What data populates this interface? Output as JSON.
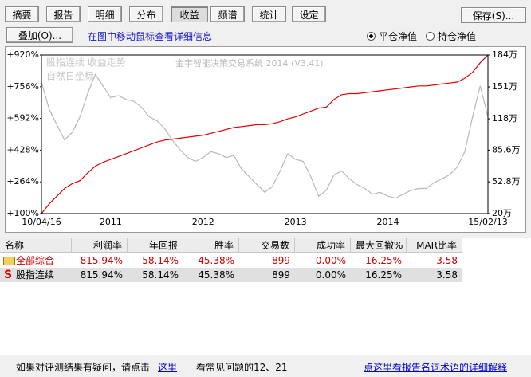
{
  "tabs": [
    "摘要",
    "报告",
    "明细",
    "分布",
    "收益",
    "频谱",
    "统计",
    "设定"
  ],
  "active_tab": 4,
  "buttons": {
    "save": "保存(S)...",
    "overlay": "叠加(O)..."
  },
  "hint": "在图中移动鼠标查看详细信息",
  "radios": [
    {
      "label": "平仓净值",
      "checked": true
    },
    {
      "label": "持仓净值",
      "checked": false
    }
  ],
  "chart_data": {
    "type": "line",
    "title": "金宇智能决策交易系统 2014 (V3.41)",
    "annotations": [
      "股指连续 收益走势",
      "自然日坐标"
    ],
    "categories": [
      "10/04/16",
      null,
      null,
      null,
      null,
      null,
      null,
      null,
      null,
      "2011",
      null,
      null,
      null,
      null,
      null,
      null,
      null,
      null,
      null,
      null,
      null,
      "2012",
      null,
      null,
      null,
      null,
      null,
      null,
      null,
      null,
      null,
      null,
      null,
      "2013",
      null,
      null,
      null,
      null,
      null,
      null,
      null,
      null,
      null,
      null,
      null,
      "2014",
      null,
      null,
      null,
      null,
      null,
      null,
      null,
      null,
      null,
      null,
      null,
      null,
      "15/02/13"
    ],
    "series": [
      {
        "color": "#b8b8b8",
        "values": [
          780,
          640,
          560,
          480,
          520,
          600,
          720,
          820,
          760,
          700,
          710,
          690,
          680,
          650,
          600,
          580,
          540,
          480,
          430,
          390,
          370,
          390,
          420,
          410,
          390,
          400,
          330,
          290,
          250,
          210,
          240,
          320,
          410,
          380,
          370,
          290,
          190,
          220,
          300,
          320,
          280,
          250,
          230,
          200,
          210,
          190,
          180,
          200,
          220,
          230,
          230,
          260,
          280,
          300,
          340,
          420,
          600,
          760,
          600
        ]
      },
      {
        "color": "#e00000",
        "values": [
          100,
          150,
          190,
          230,
          255,
          270,
          310,
          345,
          365,
          380,
          395,
          410,
          425,
          440,
          455,
          470,
          480,
          485,
          490,
          495,
          500,
          505,
          515,
          525,
          535,
          545,
          550,
          555,
          560,
          560,
          565,
          575,
          590,
          600,
          615,
          630,
          645,
          650,
          690,
          715,
          720,
          720,
          725,
          730,
          735,
          740,
          745,
          750,
          755,
          760,
          760,
          765,
          770,
          775,
          780,
          800,
          830,
          880,
          920
        ]
      }
    ],
    "ylim": [
      100,
      920
    ],
    "yticks": [
      {
        "value": 100,
        "label": "+100%"
      },
      {
        "value": 264,
        "label": "+264%"
      },
      {
        "value": 428,
        "label": "+428%"
      },
      {
        "value": 592,
        "label": "+592%"
      },
      {
        "value": 756,
        "label": "+756%"
      },
      {
        "value": 920,
        "label": "+920%"
      }
    ],
    "y2lim": [
      20,
      184
    ],
    "y2ticks": [
      {
        "value": 20,
        "label": "20万"
      },
      {
        "value": 52.8,
        "label": "52.8万"
      },
      {
        "value": 85.6,
        "label": "85.6万"
      },
      {
        "value": 118,
        "label": "118万"
      },
      {
        "value": 151,
        "label": "151万"
      },
      {
        "value": 184,
        "label": "184万"
      }
    ],
    "grid": false
  },
  "table": {
    "columns": [
      "名称",
      "利润率",
      "年回报",
      "胜率",
      "交易数",
      "成功率",
      "最大回撤%",
      "MAR比率"
    ],
    "rows": [
      [
        "全部综合",
        "815.94%",
        "58.14%",
        "45.38%",
        "899",
        "0.00%",
        "16.25%",
        "3.58"
      ],
      [
        "股指连续",
        "815.94%",
        "58.14%",
        "45.38%",
        "899",
        "0.00%",
        "16.25%",
        "3.58"
      ]
    ],
    "marker": "S",
    "highlight_row": 1
  },
  "footer": {
    "text1": "如果对评测结果有疑问，请点击",
    "link1": "这里",
    "text2": "看常见问题的12、21",
    "link2": "点这里看报告名词术语的详细解释"
  }
}
